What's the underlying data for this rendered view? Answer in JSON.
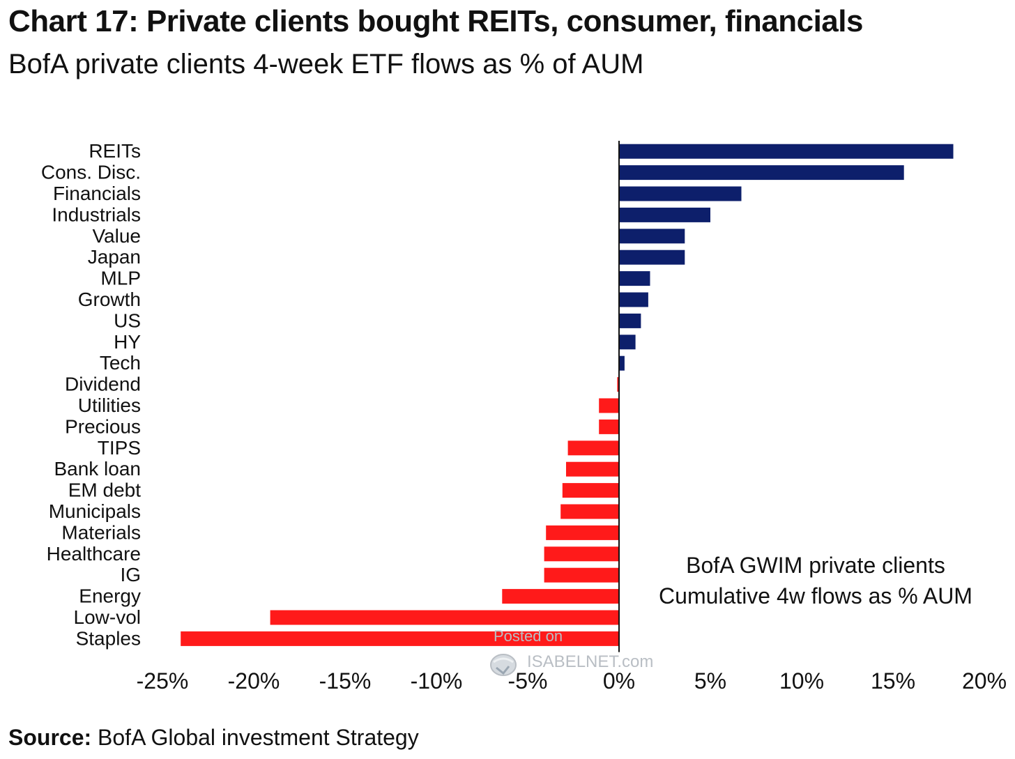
{
  "header": {
    "title": "Chart 17: Private clients bought REITs, consumer, financials",
    "subtitle": "BofA private clients 4-week ETF flows as % of AUM"
  },
  "footer": {
    "source_label": "Source:",
    "source_text": " BofA Global investment Strategy"
  },
  "watermark": {
    "line1": "Posted on",
    "line2": "ISABELNET.com"
  },
  "colors": {
    "positive": "#0d1f6b",
    "negative": "#ff1a1a",
    "axis": "#111111"
  },
  "chart_data": {
    "type": "bar",
    "orientation": "horizontal",
    "title": "",
    "xlabel": "",
    "ylabel": "",
    "xlim": [
      -25,
      20
    ],
    "x_ticks": [
      -25,
      -20,
      -15,
      -10,
      -5,
      0,
      5,
      10,
      15,
      20
    ],
    "x_tick_labels": [
      "-25%",
      "-20%",
      "-15%",
      "-10%",
      "-5%",
      "0%",
      "5%",
      "10%",
      "15%",
      "20%"
    ],
    "grid": false,
    "annotation": [
      "BofA GWIM private clients",
      "Cumulative 4w flows as % AUM"
    ],
    "categories": [
      "REITs",
      "Cons. Disc.",
      "Financials",
      "Industrials",
      "Value",
      "Japan",
      "MLP",
      "Growth",
      "US",
      "HY",
      "Tech",
      "Dividend",
      "Utilities",
      "Precious",
      "TIPS",
      "Bank loan",
      "EM debt",
      "Municipals",
      "Materials",
      "Healthcare",
      "IG",
      "Energy",
      "Low-vol",
      "Staples"
    ],
    "values": [
      18.3,
      15.6,
      6.7,
      5.0,
      3.6,
      3.6,
      1.7,
      1.6,
      1.2,
      0.9,
      0.3,
      -0.1,
      -1.1,
      -1.1,
      -2.8,
      -2.9,
      -3.1,
      -3.2,
      -4.0,
      -4.1,
      -4.1,
      -6.4,
      -19.1,
      -24.0
    ]
  }
}
